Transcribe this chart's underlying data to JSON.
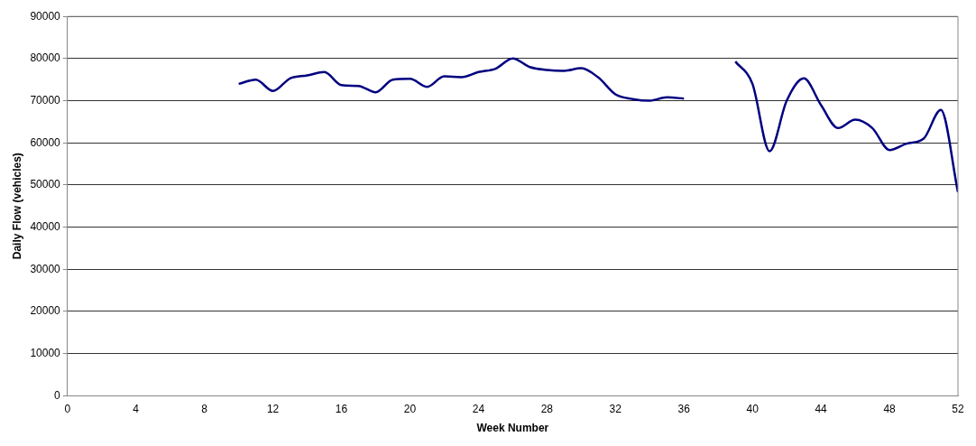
{
  "chart_data": {
    "type": "line",
    "xlabel": "Week Number",
    "ylabel": "Daily Flow (vehicles)",
    "x": [
      10,
      11,
      12,
      13,
      14,
      15,
      16,
      17,
      18,
      19,
      20,
      21,
      22,
      23,
      24,
      25,
      26,
      27,
      28,
      29,
      30,
      31,
      32,
      33,
      34,
      35,
      36,
      37,
      38,
      39,
      40,
      41,
      42,
      43,
      44,
      45,
      46,
      47,
      48,
      49,
      50,
      51,
      52
    ],
    "series": [
      {
        "color": "#000080",
        "values": [
          74000,
          75000,
          72300,
          75300,
          76000,
          76800,
          73700,
          73500,
          72000,
          75000,
          75200,
          73300,
          75800,
          75600,
          76800,
          77600,
          80000,
          78000,
          77300,
          77100,
          77700,
          75500,
          71500,
          70400,
          70000,
          70800,
          70500,
          null,
          null,
          79300,
          74000,
          58000,
          70000,
          75300,
          69000,
          63500,
          65500,
          63500,
          58300,
          59800,
          61000,
          67800,
          48300
        ]
      }
    ],
    "xlim": [
      0,
      52
    ],
    "xticks": [
      0,
      4,
      8,
      12,
      16,
      20,
      24,
      28,
      32,
      36,
      40,
      44,
      48,
      52
    ],
    "ylim": [
      0,
      90000
    ],
    "yticks": [
      0,
      10000,
      20000,
      30000,
      40000,
      50000,
      60000,
      70000,
      80000,
      90000
    ],
    "grid": "y",
    "legend": false,
    "marker": "none",
    "line_style": "solid"
  }
}
